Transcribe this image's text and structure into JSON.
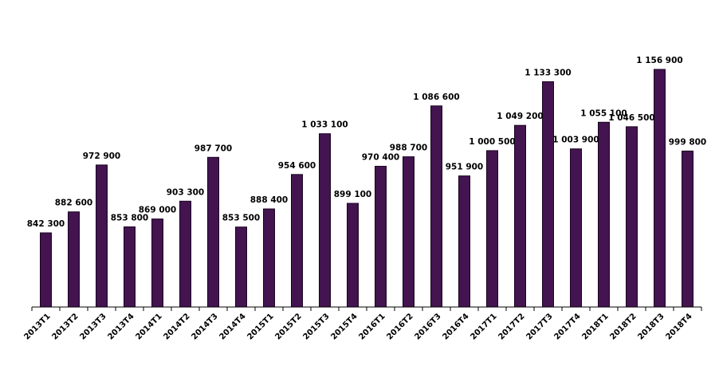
{
  "chart_data": {
    "type": "bar",
    "categories": [
      "2013T1",
      "2013T2",
      "2013T3",
      "2013T4",
      "2014T1",
      "2014T2",
      "2014T3",
      "2014T4",
      "2015T1",
      "2015T2",
      "2015T3",
      "2015T4",
      "2016T1",
      "2016T2",
      "2016T3",
      "2016T4",
      "2017T1",
      "2017T2",
      "2017T3",
      "2017T4",
      "2018T1",
      "2018T2",
      "2018T3",
      "2018T4"
    ],
    "values": [
      842300,
      882600,
      972900,
      853800,
      869000,
      903300,
      987700,
      853500,
      888400,
      954600,
      1033100,
      899100,
      970400,
      988700,
      1086600,
      951900,
      1000500,
      1049200,
      1133300,
      1003900,
      1055100,
      1046500,
      1156900,
      999800
    ],
    "labels": [
      "842 300",
      "882 600",
      "972 900",
      "853 800",
      "869 000",
      "903 300",
      "987 700",
      "853 500",
      "888 400",
      "954 600",
      "1 033 100",
      "899 100",
      "970 400",
      "988 700",
      "1 086 600",
      "951 900",
      "1 000 500",
      "1 049 200",
      "1 133 300",
      "1 003 900",
      "1 055 100",
      "1 046 500",
      "1 156 900",
      "999 800"
    ],
    "title": "",
    "xlabel": "",
    "ylabel": "",
    "ylim": [
      650000,
      1200000
    ],
    "grid": false,
    "legend": "none",
    "bar_color": "#431450"
  }
}
